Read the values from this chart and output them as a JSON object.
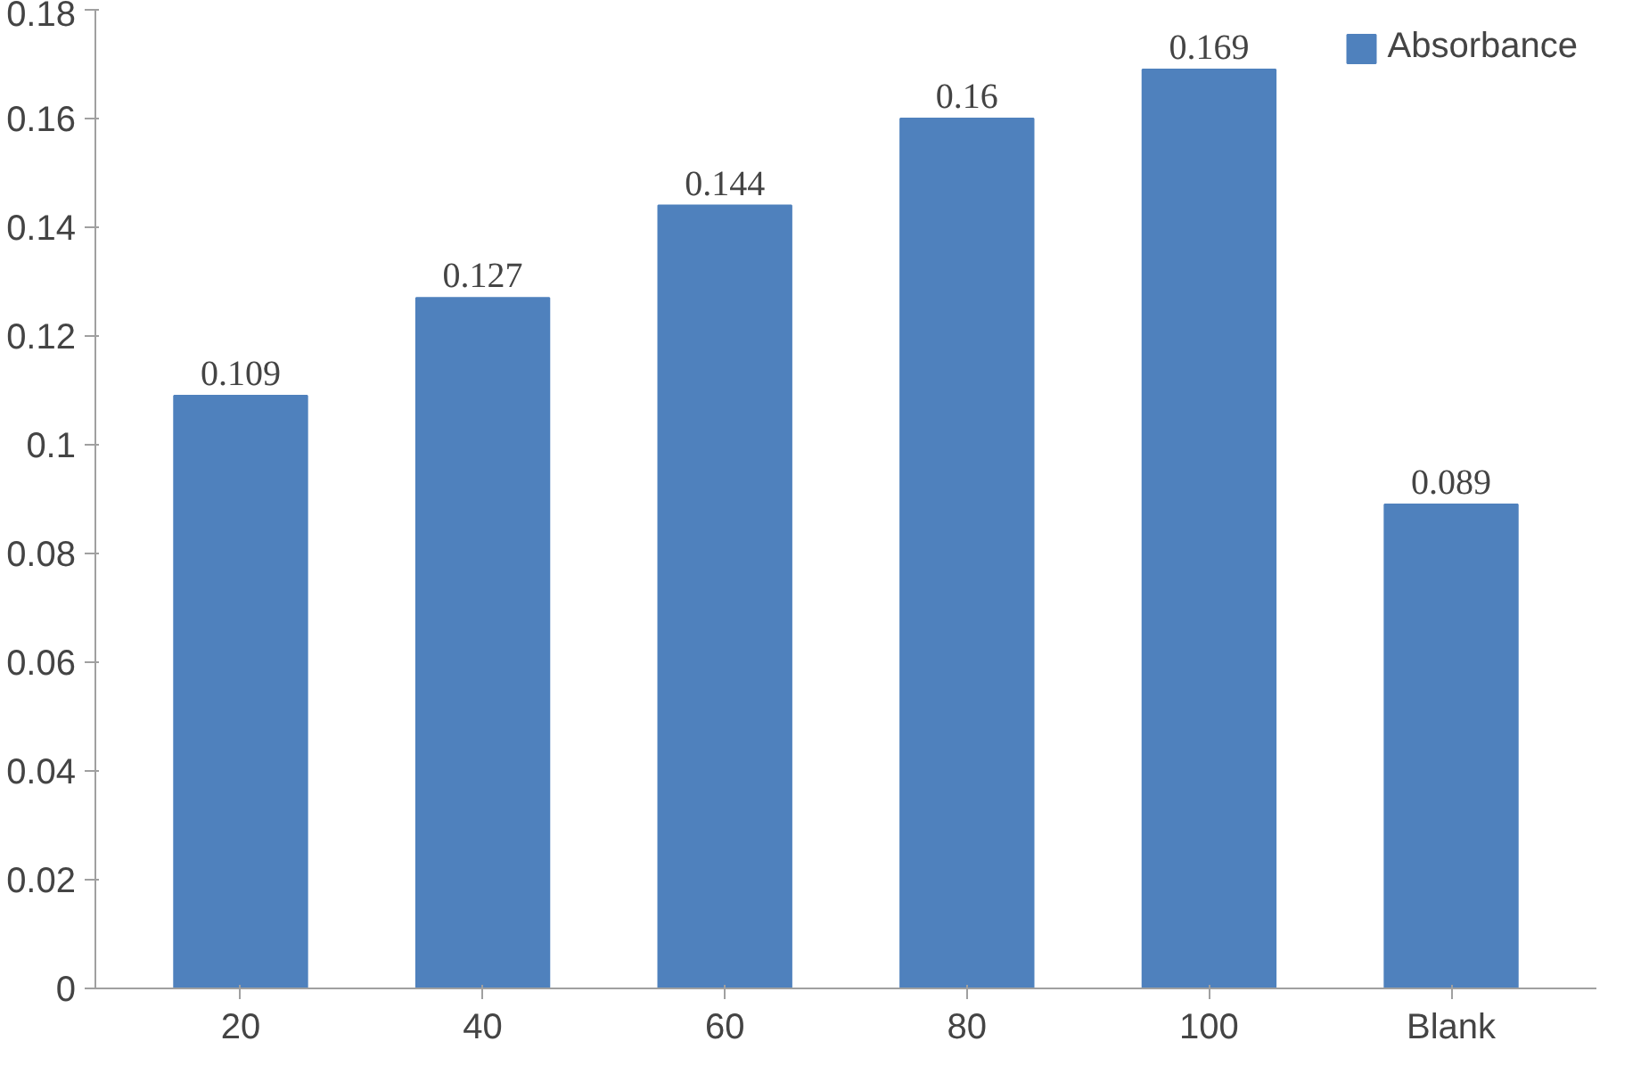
{
  "chart_data": {
    "type": "bar",
    "categories": [
      "20",
      "40",
      "60",
      "80",
      "100",
      "Blank"
    ],
    "series": [
      {
        "name": "Absorbance",
        "color": "#4f81bd",
        "values": [
          0.109,
          0.127,
          0.144,
          0.16,
          0.169,
          0.089
        ]
      }
    ],
    "ylim": [
      0,
      0.18
    ],
    "yticks": [
      0,
      0.02,
      0.04,
      0.06,
      0.08,
      0.1,
      0.12,
      0.14,
      0.16,
      0.18
    ],
    "grid": false,
    "legend": "top right",
    "data_labels": true
  }
}
